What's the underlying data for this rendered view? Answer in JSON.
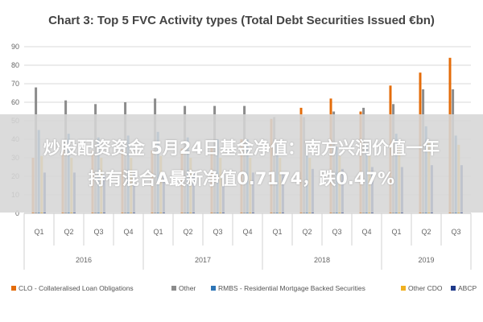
{
  "colors": {
    "CLO": "#E46C0A",
    "Other": "#8C8C8C",
    "RMBS": "#2E75B6",
    "OtherCDO": "#F0B020",
    "ABCP": "#1F3A8A",
    "grid": "#D9D9D9"
  },
  "chart_data": {
    "type": "bar",
    "title": "Chart 3: Top 5 FVC Activity types (Total Debt Securities Issued €bn)",
    "ylim": [
      0,
      90
    ],
    "yticks": [
      0,
      10,
      20,
      30,
      40,
      50,
      60,
      70,
      80,
      90
    ],
    "grid": true,
    "legend_position": "bottom",
    "categories": [
      "Q1",
      "Q2",
      "Q3",
      "Q4",
      "Q1",
      "Q2",
      "Q3",
      "Q4",
      "Q1",
      "Q2",
      "Q3",
      "Q4",
      "Q1",
      "Q2",
      "Q3"
    ],
    "years": [
      {
        "label": "2016",
        "start": 0,
        "count": 4
      },
      {
        "label": "2017",
        "start": 4,
        "count": 4
      },
      {
        "label": "2018",
        "start": 8,
        "count": 4
      },
      {
        "label": "2019",
        "start": 12,
        "count": 3
      }
    ],
    "series": [
      {
        "name": "CLO - Collateralised Loan Obligations",
        "color_key": "CLO",
        "values": [
          30,
          35,
          34,
          34,
          34,
          35,
          36,
          40,
          51,
          57,
          62,
          55,
          69,
          76,
          84
        ]
      },
      {
        "name": "Other",
        "color_key": "Other",
        "values": [
          68,
          61,
          59,
          60,
          62,
          58,
          58,
          58,
          52,
          52,
          55,
          57,
          59,
          67,
          67
        ]
      },
      {
        "name": "RMBS - Residential Mortgage Backed Securities",
        "color_key": "RMBS",
        "values": [
          45,
          43,
          41,
          42,
          44,
          41,
          40,
          40,
          37,
          37,
          36,
          37,
          43,
          47,
          42
        ]
      },
      {
        "name": "Other CDO",
        "color_key": "OtherCDO",
        "values": [
          31,
          30,
          30,
          30,
          31,
          30,
          30,
          30,
          30,
          30,
          31,
          31,
          36,
          38,
          37
        ]
      },
      {
        "name": "ABCP",
        "color_key": "ABCP",
        "values": [
          22,
          22,
          21,
          22,
          22,
          22,
          22,
          22,
          22,
          24,
          24,
          25,
          25,
          26,
          26
        ]
      }
    ]
  },
  "overlay": {
    "line1": "炒股配资资金 5月24日基金净值：南方兴润价值一年",
    "line2": "持有混合A最新净值0.7174，跌0.47%"
  }
}
